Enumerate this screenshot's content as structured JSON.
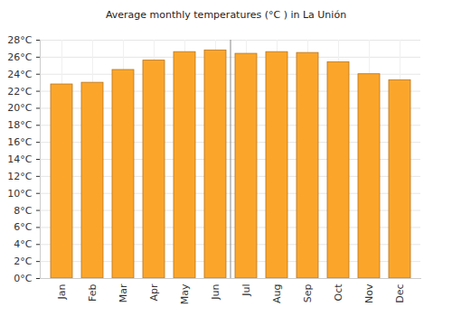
{
  "chart_data": {
    "type": "bar",
    "title": "Average monthly temperatures (°C ) in La Unión",
    "categories": [
      "Jan",
      "Feb",
      "Mar",
      "Apr",
      "May",
      "Jun",
      "Jul",
      "Aug",
      "Sep",
      "Oct",
      "Nov",
      "Dec"
    ],
    "values": [
      22.8,
      23.0,
      24.5,
      25.6,
      26.6,
      26.8,
      26.4,
      26.6,
      26.5,
      25.4,
      24.0,
      23.3
    ],
    "color": "#fba62b",
    "ylim": [
      0,
      28
    ],
    "yticks": [
      {
        "value": 0,
        "label": "0°C"
      },
      {
        "value": 2,
        "label": "2°C"
      },
      {
        "value": 4,
        "label": "4°C"
      },
      {
        "value": 6,
        "label": "6°C"
      },
      {
        "value": 8,
        "label": "8°C"
      },
      {
        "value": 10,
        "label": "10°C"
      },
      {
        "value": 12,
        "label": "12°C"
      },
      {
        "value": 14,
        "label": "14°C"
      },
      {
        "value": 16,
        "label": "16°C"
      },
      {
        "value": 18,
        "label": "18°C"
      },
      {
        "value": 20,
        "label": "20°C"
      },
      {
        "value": 22,
        "label": "22°C"
      },
      {
        "value": 24,
        "label": "24°C"
      },
      {
        "value": 26,
        "label": "26°C"
      },
      {
        "value": 28,
        "label": "28°C"
      }
    ],
    "grid": true
  }
}
